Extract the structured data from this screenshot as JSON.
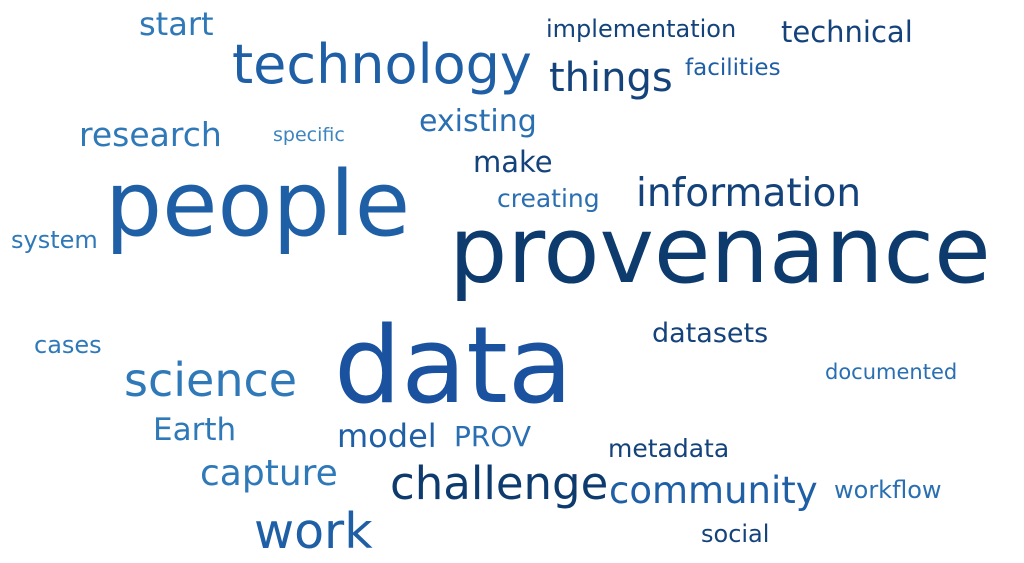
{
  "palette": {
    "dark_navy": "#0d3b6e",
    "navy": "#14437c",
    "medium_blue": "#1f5fa6",
    "blue": "#2a6fb2",
    "light_blue": "#3d85c0"
  },
  "words": [
    {
      "text": "start",
      "color": "#2f79b8"
    },
    {
      "text": "implementation",
      "color": "#14437c"
    },
    {
      "text": "technical",
      "color": "#14437c"
    },
    {
      "text": "technology",
      "color": "#1f5fa6"
    },
    {
      "text": "things",
      "color": "#14437c"
    },
    {
      "text": "facilities",
      "color": "#1f5fa6"
    },
    {
      "text": "research",
      "color": "#2f79b8"
    },
    {
      "text": "specific",
      "color": "#3d85c0"
    },
    {
      "text": "existing",
      "color": "#2a6fb2"
    },
    {
      "text": "make",
      "color": "#14437c"
    },
    {
      "text": "people",
      "color": "#1f5fa6"
    },
    {
      "text": "creating",
      "color": "#2a6fb2"
    },
    {
      "text": "information",
      "color": "#14437c"
    },
    {
      "text": "system",
      "color": "#2f79b8"
    },
    {
      "text": "provenance",
      "color": "#0d3b6e"
    },
    {
      "text": "cases",
      "color": "#2f79b8"
    },
    {
      "text": "datasets",
      "color": "#14437c"
    },
    {
      "text": "data",
      "color": "#1a52a0"
    },
    {
      "text": "science",
      "color": "#2f79b8"
    },
    {
      "text": "documented",
      "color": "#2a6fb2"
    },
    {
      "text": "Earth",
      "color": "#2f79b8"
    },
    {
      "text": "model",
      "color": "#1f5fa6"
    },
    {
      "text": "PROV",
      "color": "#2a6fb2"
    },
    {
      "text": "metadata",
      "color": "#14437c"
    },
    {
      "text": "capture",
      "color": "#2f79b8"
    },
    {
      "text": "challenge",
      "color": "#0d3b6e"
    },
    {
      "text": "community",
      "color": "#1f5fa6"
    },
    {
      "text": "workflow",
      "color": "#2a6fb2"
    },
    {
      "text": "work",
      "color": "#1f5fa6"
    },
    {
      "text": "social",
      "color": "#14437c"
    }
  ]
}
